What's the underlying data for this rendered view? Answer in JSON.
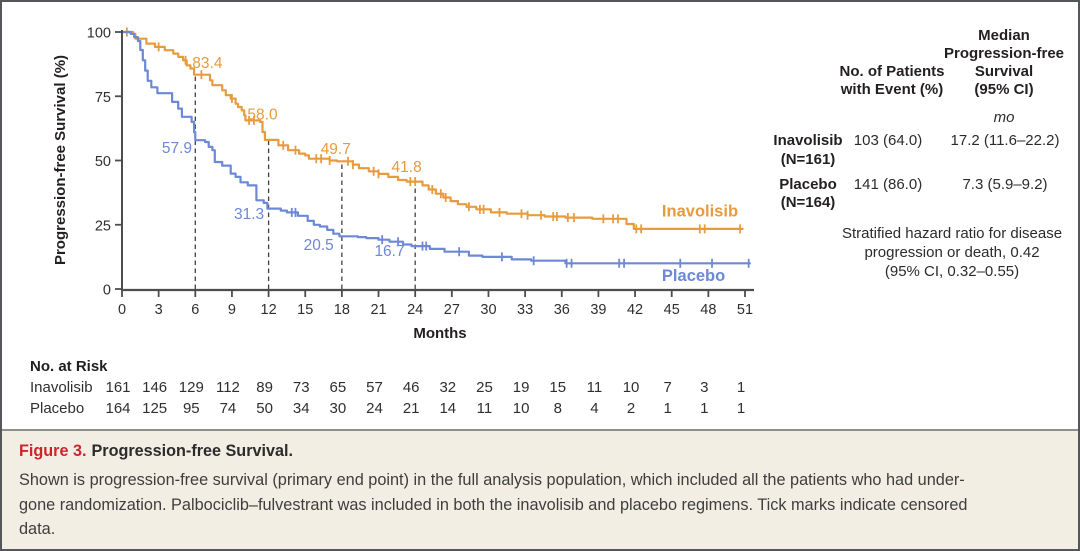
{
  "figure": {
    "caption_label": "Figure 3.",
    "caption_title": "Progression-free Survival.",
    "caption_lines": [
      "Shown is progression-free survival (primary end point) in the full analysis population, which included all the patients who had under-",
      "gone randomization. Palbociclib–fulvestrant was included in both the inavolisib and placebo regimens. Tick marks indicate censored",
      "data."
    ]
  },
  "stats": {
    "col2_header": [
      "No. of Patients",
      "with Event (%)"
    ],
    "col3_header": [
      "Median",
      "Progression-free",
      "Survival",
      "(95% CI)"
    ],
    "unit": "mo",
    "rows": [
      {
        "label1": "Inavolisib",
        "label2": "(N=161)",
        "events": "103 (64.0)",
        "median": "17.2 (11.6–22.2)"
      },
      {
        "label1": "Placebo",
        "label2": "(N=164)",
        "events": "141 (86.0)",
        "median": "7.3 (5.9–9.2)"
      }
    ],
    "hazard_lines": [
      "Stratified hazard ratio for disease",
      "progression or death, 0.42",
      "(95% CI, 0.32–0.55)"
    ]
  },
  "chart_data": {
    "type": "line",
    "subtype": "kaplan-meier-step",
    "xlabel": "Months",
    "ylabel": "Progression-free Survival (%)",
    "xlim": [
      0,
      53
    ],
    "ylim": [
      0,
      100
    ],
    "x_ticks": [
      0,
      3,
      6,
      9,
      12,
      15,
      18,
      21,
      24,
      27,
      30,
      33,
      36,
      39,
      42,
      45,
      48,
      51
    ],
    "y_ticks": [
      0,
      25,
      50,
      75,
      100
    ],
    "grid": false,
    "series": [
      {
        "name": "Inavolisib",
        "color": "#e89b3e",
        "label_pos": {
          "month": 44.2,
          "pct": 28.2
        },
        "points": [
          [
            0,
            100
          ],
          [
            0.9,
            99.3
          ],
          [
            1.1,
            97.4
          ],
          [
            2.0,
            95.5
          ],
          [
            2.7,
            94.2
          ],
          [
            3.5,
            92.9
          ],
          [
            4.2,
            91.6
          ],
          [
            4.6,
            90.3
          ],
          [
            5.0,
            89.0
          ],
          [
            5.3,
            87.0
          ],
          [
            5.6,
            85.8
          ],
          [
            5.9,
            83.4
          ],
          [
            7.2,
            81.2
          ],
          [
            7.4,
            79.3
          ],
          [
            8.2,
            77.3
          ],
          [
            8.5,
            75.4
          ],
          [
            8.9,
            74.1
          ],
          [
            9.3,
            72.1
          ],
          [
            9.5,
            70.8
          ],
          [
            9.8,
            69.5
          ],
          [
            10.0,
            67.6
          ],
          [
            10.1,
            65.6
          ],
          [
            11.3,
            65.0
          ],
          [
            11.5,
            61.1
          ],
          [
            11.7,
            58.0
          ],
          [
            12.8,
            55.9
          ],
          [
            13.6,
            54.0
          ],
          [
            14.5,
            52.7
          ],
          [
            15.0,
            52.0
          ],
          [
            15.3,
            50.7
          ],
          [
            17.0,
            50.0
          ],
          [
            17.6,
            49.7
          ],
          [
            18.9,
            48.4
          ],
          [
            19.4,
            47.0
          ],
          [
            20.2,
            45.8
          ],
          [
            21.0,
            44.8
          ],
          [
            21.8,
            43.6
          ],
          [
            22.6,
            42.4
          ],
          [
            23.3,
            41.8
          ],
          [
            24.6,
            40.3
          ],
          [
            25.1,
            38.7
          ],
          [
            25.7,
            37.1
          ],
          [
            26.3,
            35.6
          ],
          [
            26.9,
            34.2
          ],
          [
            27.5,
            33.0
          ],
          [
            28.2,
            32.0
          ],
          [
            29.0,
            31.0
          ],
          [
            30.2,
            29.8
          ],
          [
            31.5,
            29.3
          ],
          [
            33.2,
            28.7
          ],
          [
            34.6,
            28.2
          ],
          [
            36.3,
            27.8
          ],
          [
            38.5,
            27.3
          ],
          [
            41.3,
            25.3
          ],
          [
            41.9,
            23.4
          ],
          [
            50.8,
            23.4
          ]
        ],
        "censor_months": [
          0.4,
          3.0,
          5.2,
          6.5,
          9.0,
          10.4,
          10.8,
          13.2,
          14.2,
          15.9,
          16.3,
          17.0,
          18.5,
          18.9,
          20.6,
          21.0,
          23.6,
          24.0,
          25.4,
          26.1,
          26.5,
          28.4,
          29.3,
          29.6,
          30.9,
          32.7,
          33.2,
          34.3,
          35.3,
          35.6,
          36.5,
          37.0,
          39.4,
          40.2,
          40.6,
          42.1,
          42.5,
          47.3,
          47.7,
          50.6
        ]
      },
      {
        "name": "Placebo",
        "color": "#6c88d7",
        "label_pos": {
          "month": 44.2,
          "pct": 3.2
        },
        "points": [
          [
            0,
            100
          ],
          [
            0.7,
            99.3
          ],
          [
            1.0,
            98.0
          ],
          [
            1.3,
            96.5
          ],
          [
            1.5,
            93.0
          ],
          [
            1.7,
            89.0
          ],
          [
            1.9,
            85.0
          ],
          [
            2.1,
            81.0
          ],
          [
            2.4,
            78.5
          ],
          [
            2.9,
            76.2
          ],
          [
            4.1,
            72.8
          ],
          [
            4.6,
            70.2
          ],
          [
            4.9,
            67.0
          ],
          [
            5.7,
            65.0
          ],
          [
            5.9,
            61.0
          ],
          [
            6.0,
            57.9
          ],
          [
            6.8,
            57.2
          ],
          [
            7.1,
            55.3
          ],
          [
            7.4,
            54.0
          ],
          [
            7.6,
            49.4
          ],
          [
            8.2,
            48.0
          ],
          [
            8.9,
            44.9
          ],
          [
            9.3,
            43.6
          ],
          [
            9.7,
            41.5
          ],
          [
            10.3,
            40.3
          ],
          [
            11.0,
            34.5
          ],
          [
            11.6,
            33.5
          ],
          [
            11.9,
            31.3
          ],
          [
            13.0,
            30.5
          ],
          [
            13.5,
            29.8
          ],
          [
            14.4,
            28.5
          ],
          [
            15.2,
            26.5
          ],
          [
            15.7,
            25.0
          ],
          [
            16.2,
            24.3
          ],
          [
            16.8,
            23.0
          ],
          [
            17.3,
            21.5
          ],
          [
            17.8,
            20.5
          ],
          [
            19.3,
            20.2
          ],
          [
            20.0,
            19.8
          ],
          [
            21.0,
            19.2
          ],
          [
            21.9,
            18.4
          ],
          [
            23.0,
            17.3
          ],
          [
            23.7,
            16.7
          ],
          [
            25.2,
            15.6
          ],
          [
            26.4,
            14.5
          ],
          [
            28.4,
            13.0
          ],
          [
            29.5,
            12.5
          ],
          [
            31.9,
            11.5
          ],
          [
            33.5,
            11.0
          ],
          [
            36.3,
            10.0
          ],
          [
            51.4,
            10.0
          ]
        ],
        "censor_months": [
          13.9,
          14.2,
          21.3,
          22.6,
          24.6,
          24.9,
          27.6,
          31.1,
          33.7,
          36.4,
          36.8,
          40.7,
          41.1,
          45.7,
          48.3,
          51.3
        ]
      }
    ],
    "dashed_markers": [
      {
        "month": 6,
        "top_pct": 83.4
      },
      {
        "month": 12,
        "top_pct": 58.0
      },
      {
        "month": 18,
        "top_pct": 49.7
      },
      {
        "month": 24,
        "top_pct": 41.8
      }
    ],
    "annotations": [
      {
        "text": "83.4",
        "series": "Inavolisib",
        "month": 6.0,
        "pct": 86.0,
        "anchor": "start",
        "dx": -3
      },
      {
        "text": "58.0",
        "series": "Inavolisib",
        "month": 11.5,
        "pct": 66.0,
        "anchor": "middle",
        "dx": 0
      },
      {
        "text": "49.7",
        "series": "Inavolisib",
        "month": 17.5,
        "pct": 52.5,
        "anchor": "middle",
        "dx": 0
      },
      {
        "text": "41.8",
        "series": "Inavolisib",
        "month": 23.3,
        "pct": 45.5,
        "anchor": "middle",
        "dx": 0
      },
      {
        "text": "57.9",
        "series": "Placebo",
        "month": 4.5,
        "pct": 52.9,
        "anchor": "middle",
        "dx": 0
      },
      {
        "text": "31.3",
        "series": "Placebo",
        "month": 10.4,
        "pct": 27.2,
        "anchor": "middle",
        "dx": 0
      },
      {
        "text": "20.5",
        "series": "Placebo",
        "month": 16.1,
        "pct": 15.2,
        "anchor": "middle",
        "dx": 0
      },
      {
        "text": "16.7",
        "series": "Placebo",
        "month": 21.9,
        "pct": 12.8,
        "anchor": "middle",
        "dx": 0
      }
    ],
    "risk_table": {
      "title": "No. at Risk",
      "months": [
        0,
        3,
        6,
        9,
        12,
        15,
        18,
        21,
        24,
        27,
        30,
        33,
        36,
        39,
        42,
        45,
        48,
        51
      ],
      "rows": [
        {
          "name": "Inavolisib",
          "counts": [
            161,
            146,
            129,
            112,
            89,
            73,
            65,
            57,
            46,
            32,
            25,
            19,
            15,
            11,
            10,
            7,
            3,
            1
          ]
        },
        {
          "name": "Placebo",
          "counts": [
            164,
            125,
            95,
            74,
            50,
            34,
            30,
            24,
            21,
            14,
            11,
            10,
            8,
            4,
            2,
            1,
            1,
            1
          ]
        }
      ]
    }
  }
}
